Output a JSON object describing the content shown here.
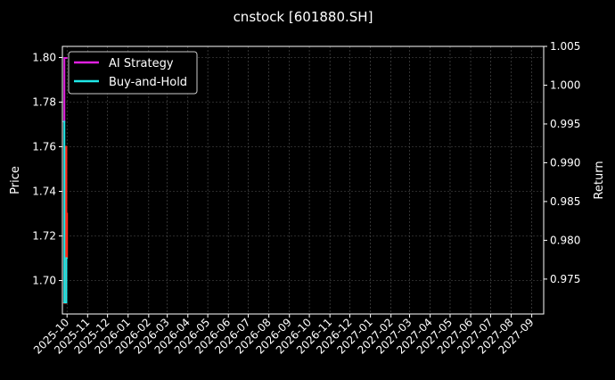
{
  "chart_data": {
    "type": "line",
    "title": "cnstock [601880.SH]",
    "ylabel": "Price",
    "y2label": "Return",
    "xlim": [
      "2025-09-24",
      "2027-09-19"
    ],
    "ylim": [
      1.685,
      1.805
    ],
    "y2lim": [
      0.9705,
      1.005
    ],
    "x_ticks": [
      "2025-10",
      "2025-11",
      "2025-12",
      "2026-01",
      "2026-02",
      "2026-03",
      "2026-04",
      "2026-05",
      "2026-06",
      "2026-07",
      "2026-08",
      "2026-09",
      "2026-10",
      "2026-11",
      "2026-12",
      "2027-01",
      "2027-02",
      "2027-03",
      "2027-04",
      "2027-05",
      "2027-06",
      "2027-07",
      "2027-08",
      "2027-09"
    ],
    "y_ticks": [
      "1.70",
      "1.72",
      "1.74",
      "1.76",
      "1.78",
      "1.80"
    ],
    "y2_ticks": [
      "0.975",
      "0.980",
      "0.985",
      "0.990",
      "0.995",
      "1.000",
      "1.005"
    ],
    "grid": true,
    "legend_position": "top-left",
    "background": "#000000",
    "series": [
      {
        "name": "",
        "axis": "left",
        "color": "#ff2a1a",
        "x": [
          "2025-09-26",
          "2025-09-29",
          "2025-09-30",
          "2025-10-01"
        ],
        "values": [
          1.69,
          1.76,
          1.73,
          1.71
        ]
      },
      {
        "name": "AI Strategy",
        "axis": "right",
        "color": "#e020e0",
        "x": [
          "2025-09-26",
          "2025-09-27",
          "2025-09-30",
          "2025-10-01"
        ],
        "values": [
          0.9953,
          1.0035,
          1.0035,
          1.0035
        ]
      },
      {
        "name": "Buy-and-Hold",
        "axis": "right",
        "color": "#20e8e8",
        "x": [
          "2025-09-26",
          "2025-09-27",
          "2025-09-30",
          "2025-10-01"
        ],
        "values": [
          0.9953,
          0.972,
          0.9777,
          0.9777
        ]
      }
    ]
  }
}
